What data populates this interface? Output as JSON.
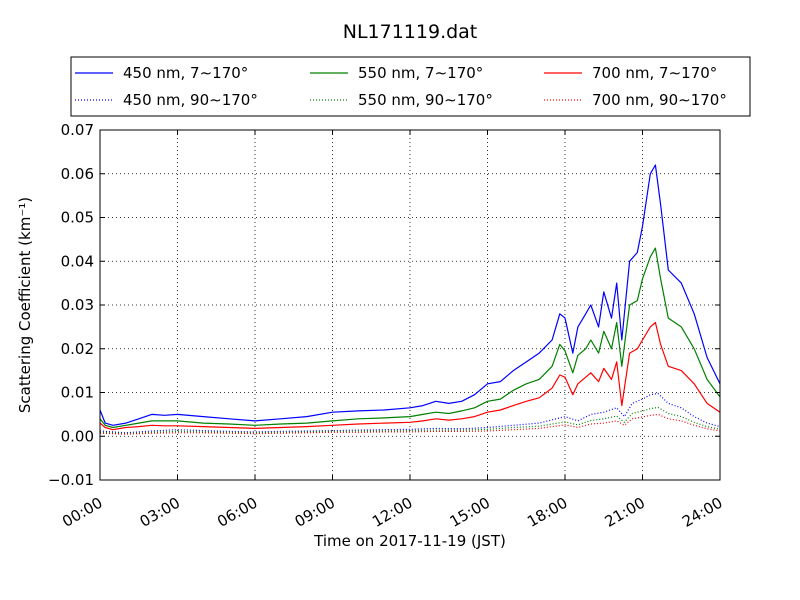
{
  "chart_data": {
    "type": "line",
    "title": "NL171119.dat",
    "xlabel": "Time on 2017-11-19 (JST)",
    "ylabel": "Scattering Coefficient (km⁻¹)",
    "x_unit": "hours",
    "xlim": [
      0,
      24
    ],
    "ylim": [
      -0.01,
      0.07
    ],
    "grid": true,
    "legend_position": "top",
    "legend_columns": 3,
    "x_ticks": [
      0,
      3,
      6,
      9,
      12,
      15,
      18,
      21,
      24
    ],
    "x_tick_labels": [
      "00:00",
      "03:00",
      "06:00",
      "09:00",
      "12:00",
      "15:00",
      "18:00",
      "21:00",
      "24:00"
    ],
    "y_ticks": [
      -0.01,
      0.0,
      0.01,
      0.02,
      0.03,
      0.04,
      0.05,
      0.06,
      0.07
    ],
    "y_tick_labels": [
      "−0.01",
      "0.00",
      "0.01",
      "0.02",
      "0.03",
      "0.04",
      "0.05",
      "0.06",
      "0.07"
    ],
    "series": [
      {
        "name": "450 nm, 7∼170°",
        "color": "#0000ff",
        "style": "solid",
        "x": [
          0,
          0.2,
          0.5,
          1.0,
          1.5,
          2.0,
          2.5,
          3.0,
          4.0,
          5.0,
          6.0,
          7.0,
          8.0,
          9.0,
          10.0,
          11.0,
          12.0,
          12.5,
          13.0,
          13.5,
          14.0,
          14.5,
          15.0,
          15.5,
          16.0,
          16.5,
          17.0,
          17.5,
          17.8,
          18.0,
          18.3,
          18.5,
          18.8,
          19.0,
          19.3,
          19.5,
          19.8,
          20.0,
          20.2,
          20.5,
          20.8,
          21.0,
          21.3,
          21.5,
          21.7,
          22.0,
          22.5,
          23.0,
          23.5,
          24.0
        ],
        "y": [
          0.006,
          0.003,
          0.0025,
          0.003,
          0.004,
          0.005,
          0.0048,
          0.005,
          0.0045,
          0.004,
          0.0035,
          0.004,
          0.0045,
          0.0055,
          0.0058,
          0.006,
          0.0065,
          0.007,
          0.008,
          0.0075,
          0.008,
          0.0095,
          0.012,
          0.0125,
          0.015,
          0.017,
          0.019,
          0.022,
          0.028,
          0.027,
          0.019,
          0.025,
          0.028,
          0.03,
          0.025,
          0.033,
          0.027,
          0.035,
          0.022,
          0.04,
          0.042,
          0.048,
          0.06,
          0.062,
          0.053,
          0.038,
          0.035,
          0.028,
          0.018,
          0.012
        ]
      },
      {
        "name": "550 nm, 7∼170°",
        "color": "#008000",
        "style": "solid",
        "x": [
          0,
          0.2,
          0.5,
          1.0,
          1.5,
          2.0,
          2.5,
          3.0,
          4.0,
          5.0,
          6.0,
          7.0,
          8.0,
          9.0,
          10.0,
          11.0,
          12.0,
          12.5,
          13.0,
          13.5,
          14.0,
          14.5,
          15.0,
          15.5,
          16.0,
          16.5,
          17.0,
          17.5,
          17.8,
          18.0,
          18.3,
          18.5,
          18.8,
          19.0,
          19.3,
          19.5,
          19.8,
          20.0,
          20.2,
          20.5,
          20.8,
          21.0,
          21.3,
          21.5,
          21.7,
          22.0,
          22.5,
          23.0,
          23.5,
          24.0
        ],
        "y": [
          0.004,
          0.0025,
          0.002,
          0.0025,
          0.003,
          0.0035,
          0.0035,
          0.0035,
          0.003,
          0.0028,
          0.0025,
          0.0028,
          0.003,
          0.0035,
          0.004,
          0.0042,
          0.0045,
          0.005,
          0.0055,
          0.0052,
          0.0058,
          0.0065,
          0.008,
          0.0085,
          0.0105,
          0.012,
          0.013,
          0.016,
          0.021,
          0.0195,
          0.0145,
          0.0185,
          0.02,
          0.022,
          0.019,
          0.024,
          0.02,
          0.026,
          0.016,
          0.03,
          0.031,
          0.036,
          0.041,
          0.043,
          0.036,
          0.027,
          0.025,
          0.02,
          0.013,
          0.009
        ]
      },
      {
        "name": "700 nm, 7∼170°",
        "color": "#ff0000",
        "style": "solid",
        "x": [
          0,
          0.2,
          0.5,
          1.0,
          1.5,
          2.0,
          2.5,
          3.0,
          4.0,
          5.0,
          6.0,
          7.0,
          8.0,
          9.0,
          10.0,
          11.0,
          12.0,
          12.5,
          13.0,
          13.5,
          14.0,
          14.5,
          15.0,
          15.5,
          16.0,
          16.5,
          17.0,
          17.5,
          17.8,
          18.0,
          18.3,
          18.5,
          18.8,
          19.0,
          19.3,
          19.5,
          19.8,
          20.0,
          20.2,
          20.5,
          20.8,
          21.0,
          21.3,
          21.5,
          21.7,
          22.0,
          22.5,
          23.0,
          23.5,
          24.0
        ],
        "y": [
          0.003,
          0.002,
          0.0015,
          0.002,
          0.0022,
          0.0025,
          0.0024,
          0.0024,
          0.0022,
          0.002,
          0.0018,
          0.002,
          0.0022,
          0.0025,
          0.0028,
          0.003,
          0.0032,
          0.0035,
          0.004,
          0.0037,
          0.004,
          0.0045,
          0.0055,
          0.006,
          0.007,
          0.008,
          0.0088,
          0.011,
          0.014,
          0.0135,
          0.0095,
          0.012,
          0.0135,
          0.0145,
          0.0125,
          0.0155,
          0.013,
          0.017,
          0.007,
          0.019,
          0.02,
          0.022,
          0.025,
          0.026,
          0.021,
          0.016,
          0.015,
          0.012,
          0.0075,
          0.0055
        ]
      },
      {
        "name": "450 nm, 90∼170°",
        "color": "#0000ff",
        "style": "dotted",
        "x": [
          0,
          1,
          2,
          3,
          4,
          5,
          6,
          7,
          8,
          9,
          10,
          11,
          12,
          13,
          14,
          15,
          16,
          17,
          18,
          18.5,
          19,
          19.5,
          20,
          20.3,
          20.6,
          21,
          21.3,
          21.6,
          22,
          22.5,
          23,
          23.5,
          24
        ],
        "y": [
          0.0012,
          0.0008,
          0.0012,
          0.0015,
          0.0013,
          0.0011,
          0.001,
          0.0011,
          0.0012,
          0.0013,
          0.0014,
          0.0015,
          0.0016,
          0.0018,
          0.0017,
          0.002,
          0.0025,
          0.003,
          0.0045,
          0.0035,
          0.005,
          0.0055,
          0.0065,
          0.0045,
          0.0075,
          0.0085,
          0.0095,
          0.0098,
          0.0075,
          0.0065,
          0.0045,
          0.003,
          0.0022
        ]
      },
      {
        "name": "550 nm, 90∼170°",
        "color": "#008000",
        "style": "dotted",
        "x": [
          0,
          1,
          2,
          3,
          4,
          5,
          6,
          7,
          8,
          9,
          10,
          11,
          12,
          13,
          14,
          15,
          16,
          17,
          18,
          18.5,
          19,
          19.5,
          20,
          20.3,
          20.6,
          21,
          21.3,
          21.6,
          22,
          22.5,
          23,
          23.5,
          24
        ],
        "y": [
          0.0009,
          0.0006,
          0.0009,
          0.0011,
          0.001,
          0.0009,
          0.0008,
          0.0009,
          0.001,
          0.0011,
          0.0012,
          0.0012,
          0.0013,
          0.0014,
          0.0014,
          0.0016,
          0.002,
          0.0023,
          0.0033,
          0.0026,
          0.0036,
          0.004,
          0.0046,
          0.0032,
          0.0052,
          0.0058,
          0.0063,
          0.0066,
          0.0052,
          0.0045,
          0.0032,
          0.0022,
          0.0016
        ]
      },
      {
        "name": "700 nm, 90∼170°",
        "color": "#ff0000",
        "style": "dotted",
        "x": [
          0,
          1,
          2,
          3,
          4,
          5,
          6,
          7,
          8,
          9,
          10,
          11,
          12,
          13,
          14,
          15,
          16,
          17,
          18,
          18.5,
          19,
          19.5,
          20,
          20.3,
          20.6,
          21,
          21.3,
          21.6,
          22,
          22.5,
          23,
          23.5,
          24
        ],
        "y": [
          0.0007,
          0.0005,
          0.0007,
          0.0008,
          0.0008,
          0.0007,
          0.0006,
          0.0007,
          0.0008,
          0.0009,
          0.0009,
          0.001,
          0.001,
          0.0011,
          0.0011,
          0.0012,
          0.0015,
          0.0018,
          0.0026,
          0.002,
          0.0028,
          0.003,
          0.0035,
          0.0025,
          0.004,
          0.0044,
          0.0048,
          0.005,
          0.004,
          0.0035,
          0.0025,
          0.0017,
          0.0012
        ]
      }
    ]
  }
}
